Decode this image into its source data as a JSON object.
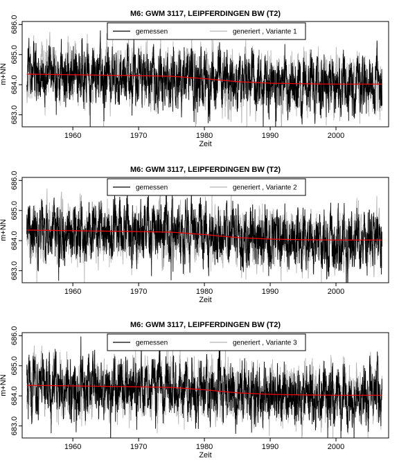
{
  "chart_data": [
    {
      "type": "line",
      "title": "M6: GWM 3117, LEIPFERDINGEN BW (T2)",
      "xlabel": "Zeit",
      "ylabel": "m+NN",
      "xticks": [
        "1960",
        "1970",
        "1980",
        "1990",
        "2000"
      ],
      "yticks": [
        "683.0",
        "684.0",
        "685.0",
        "686.0"
      ],
      "xlim": [
        1952.3,
        2008.0
      ],
      "ylim": [
        682.6,
        686.1
      ],
      "legend_position": "top",
      "grid": false,
      "seed": 11,
      "series": [
        {
          "name": "gemessen",
          "color": "#000000",
          "start": 1953.0,
          "end": 2007.0,
          "mean": 684.2,
          "amplitude": 0.65
        },
        {
          "name": "generiert , Variante 1",
          "color": "#b3b3b3",
          "start": 1953.0,
          "end": 2007.0,
          "mean": 684.2,
          "amplitude": 0.7
        },
        {
          "name": "",
          "color": "#ff0000",
          "trend": true,
          "x": [
            1953,
            1960,
            1970,
            1975,
            1980,
            1985,
            1990,
            1995,
            2000,
            2007
          ],
          "values": [
            684.35,
            684.33,
            684.3,
            684.28,
            684.2,
            684.1,
            684.05,
            684.03,
            684.02,
            684.02
          ]
        }
      ]
    },
    {
      "type": "line",
      "title": "M6: GWM 3117, LEIPFERDINGEN BW (T2)",
      "xlabel": "Zeit",
      "ylabel": "m+NN",
      "xticks": [
        "1960",
        "1970",
        "1980",
        "1990",
        "2000"
      ],
      "yticks": [
        "683.0",
        "684.0",
        "685.0",
        "686.0"
      ],
      "xlim": [
        1952.3,
        2008.0
      ],
      "ylim": [
        682.6,
        686.1
      ],
      "legend_position": "top",
      "grid": false,
      "seed": 23,
      "series": [
        {
          "name": "gemessen",
          "color": "#000000",
          "start": 1953.0,
          "end": 2007.0,
          "mean": 684.2,
          "amplitude": 0.65
        },
        {
          "name": "generiert , Variante 2",
          "color": "#b3b3b3",
          "start": 1953.0,
          "end": 2007.0,
          "mean": 684.2,
          "amplitude": 0.7
        },
        {
          "name": "",
          "color": "#ff0000",
          "trend": true,
          "x": [
            1953,
            1960,
            1970,
            1975,
            1980,
            1985,
            1990,
            1995,
            2000,
            2007
          ],
          "values": [
            684.35,
            684.33,
            684.3,
            684.28,
            684.2,
            684.1,
            684.05,
            684.03,
            684.02,
            684.02
          ]
        }
      ]
    },
    {
      "type": "line",
      "title": "M6: GWM 3117, LEIPFERDINGEN BW (T2)",
      "xlabel": "Zeit",
      "ylabel": "m+NN",
      "xticks": [
        "1960",
        "1970",
        "1980",
        "1990",
        "2000"
      ],
      "yticks": [
        "683.0",
        "684.0",
        "685.0",
        "686.0"
      ],
      "xlim": [
        1952.3,
        2008.0
      ],
      "ylim": [
        682.6,
        686.1
      ],
      "legend_position": "top",
      "grid": false,
      "seed": 37,
      "series": [
        {
          "name": "gemessen",
          "color": "#000000",
          "start": 1953.0,
          "end": 2007.0,
          "mean": 684.2,
          "amplitude": 0.65
        },
        {
          "name": "generiert , Variante 3",
          "color": "#b3b3b3",
          "start": 1953.0,
          "end": 2007.0,
          "mean": 684.2,
          "amplitude": 0.7
        },
        {
          "name": "",
          "color": "#ff0000",
          "trend": true,
          "x": [
            1953,
            1960,
            1970,
            1975,
            1980,
            1985,
            1990,
            1995,
            2000,
            2007
          ],
          "values": [
            684.35,
            684.33,
            684.3,
            684.28,
            684.2,
            684.1,
            684.05,
            684.03,
            684.02,
            684.02
          ]
        }
      ]
    }
  ]
}
